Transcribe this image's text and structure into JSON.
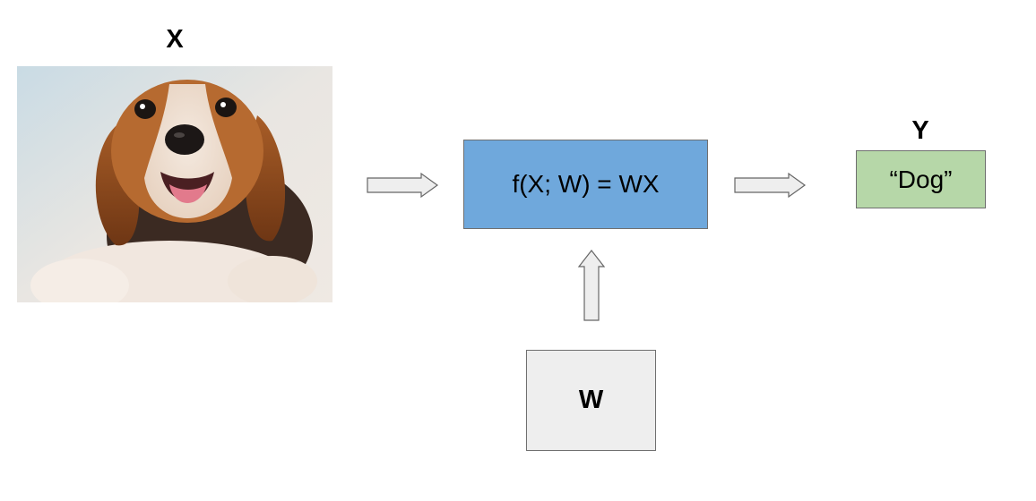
{
  "input": {
    "label": "X",
    "image": "beagle-puppy-photo"
  },
  "function_box": {
    "text": "f(X; W) = WX",
    "color": "#6fa8dc"
  },
  "weights_box": {
    "text": "W",
    "color": "#eeeeee"
  },
  "output": {
    "label": "Y",
    "text": "“Dog”",
    "color": "#b6d7a8"
  },
  "arrows": [
    "input-to-function",
    "function-to-output",
    "weights-to-function"
  ]
}
